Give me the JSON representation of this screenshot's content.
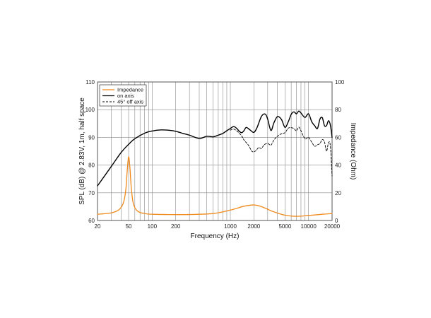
{
  "chart_data": {
    "type": "line",
    "xlabel": "Frequency (Hz)",
    "ylabel_left": "SPL (dB) @ 2.83V, 1m, half space",
    "ylabel_right": "Impedance (Ohm)",
    "x_scale": "log",
    "xlim": [
      20,
      20000
    ],
    "ylim_left": [
      60,
      110
    ],
    "ylim_right": [
      0,
      100
    ],
    "x_ticks": [
      {
        "value": 20,
        "label": "20"
      },
      {
        "value": 50,
        "label": "50"
      },
      {
        "value": 100,
        "label": "100"
      },
      {
        "value": 200,
        "label": "200"
      },
      {
        "value": 1000,
        "label": "1000"
      },
      {
        "value": 2000,
        "label": "2000"
      },
      {
        "value": 5000,
        "label": "5000"
      },
      {
        "value": 10000,
        "label": "10000"
      },
      {
        "value": 20000,
        "label": "20000"
      }
    ],
    "y_ticks_left": [
      60,
      70,
      80,
      90,
      100,
      110
    ],
    "y_ticks_right": [
      0,
      20,
      40,
      60,
      80,
      100
    ],
    "grid": true,
    "legend_position": "top-left",
    "colors": {
      "impedance": "#f08a1c",
      "on_axis": "#000000",
      "off_axis": "#000000",
      "grid": "#888888",
      "frame": "#555555"
    },
    "series": [
      {
        "name": "Impedance",
        "axis": "right",
        "style": "solid",
        "x": [
          20,
          30,
          38,
          43,
          46,
          48,
          50,
          52,
          54,
          57,
          62,
          70,
          85,
          100,
          150,
          300,
          600,
          1000,
          1500,
          2000,
          2500,
          3500,
          5000,
          7000,
          10000,
          15000,
          20000
        ],
        "y": [
          4.5,
          5.5,
          8,
          13,
          22,
          36,
          46,
          38,
          24,
          13,
          8,
          5.8,
          4.8,
          4.5,
          4.3,
          4.3,
          5,
          7.5,
          10.3,
          11.2,
          10,
          6.5,
          3.8,
          3,
          3.6,
          4.5,
          5
        ]
      },
      {
        "name": "on axis",
        "axis": "left",
        "style": "solid",
        "x": [
          20,
          30,
          40,
          50,
          60,
          80,
          100,
          130,
          160,
          200,
          250,
          300,
          400,
          500,
          600,
          700,
          800,
          900,
          1000,
          1100,
          1200,
          1300,
          1400,
          1500,
          1600,
          1800,
          2000,
          2200,
          2500,
          2800,
          3000,
          3300,
          3600,
          4000,
          4500,
          5000,
          5500,
          6000,
          6500,
          7000,
          7500,
          8000,
          9000,
          10000,
          11000,
          12000,
          13000,
          14000,
          15000,
          16000,
          17000,
          18000,
          19000,
          20000
        ],
        "y": [
          72.5,
          79.5,
          84.5,
          87.5,
          89.5,
          91.5,
          92.3,
          92.7,
          92.6,
          92.2,
          91.4,
          90.8,
          89.6,
          90.4,
          90.2,
          90.8,
          91.4,
          92.4,
          93.2,
          93.9,
          93.3,
          92.2,
          91.7,
          92.5,
          93.6,
          92.6,
          91.8,
          93.6,
          97.6,
          98.4,
          96.6,
          92.5,
          95.2,
          97.5,
          96.5,
          93.6,
          95.6,
          98.3,
          99.2,
          98.5,
          99.5,
          98.8,
          97.2,
          98.5,
          95.6,
          94.2,
          93.2,
          96.6,
          97.1,
          94.2,
          94.3,
          96.0,
          94.5,
          90.0
        ]
      },
      {
        "name": "45° off axis",
        "axis": "left",
        "style": "dashed",
        "x": [
          1000,
          1100,
          1200,
          1300,
          1400,
          1500,
          1700,
          1900,
          2100,
          2300,
          2500,
          2700,
          3000,
          3300,
          3600,
          4000,
          4500,
          5000,
          5500,
          6000,
          6500,
          7000,
          7500,
          8000,
          9000,
          10000,
          11000,
          12000,
          13000,
          14000,
          15000,
          16000,
          17000,
          18000,
          19000,
          20000
        ],
        "y": [
          92.6,
          93.0,
          92.4,
          91.5,
          90.5,
          89.0,
          87.2,
          84.9,
          85.1,
          86.3,
          86.0,
          87.3,
          87.8,
          87.2,
          89.0,
          90.4,
          91.3,
          91.7,
          93.3,
          93.5,
          93.2,
          92.4,
          93.7,
          92.4,
          89.5,
          90.0,
          88.2,
          86.8,
          87.3,
          87.8,
          89.2,
          88.3,
          85.0,
          88.1,
          87.0,
          76.0
        ]
      }
    ]
  }
}
